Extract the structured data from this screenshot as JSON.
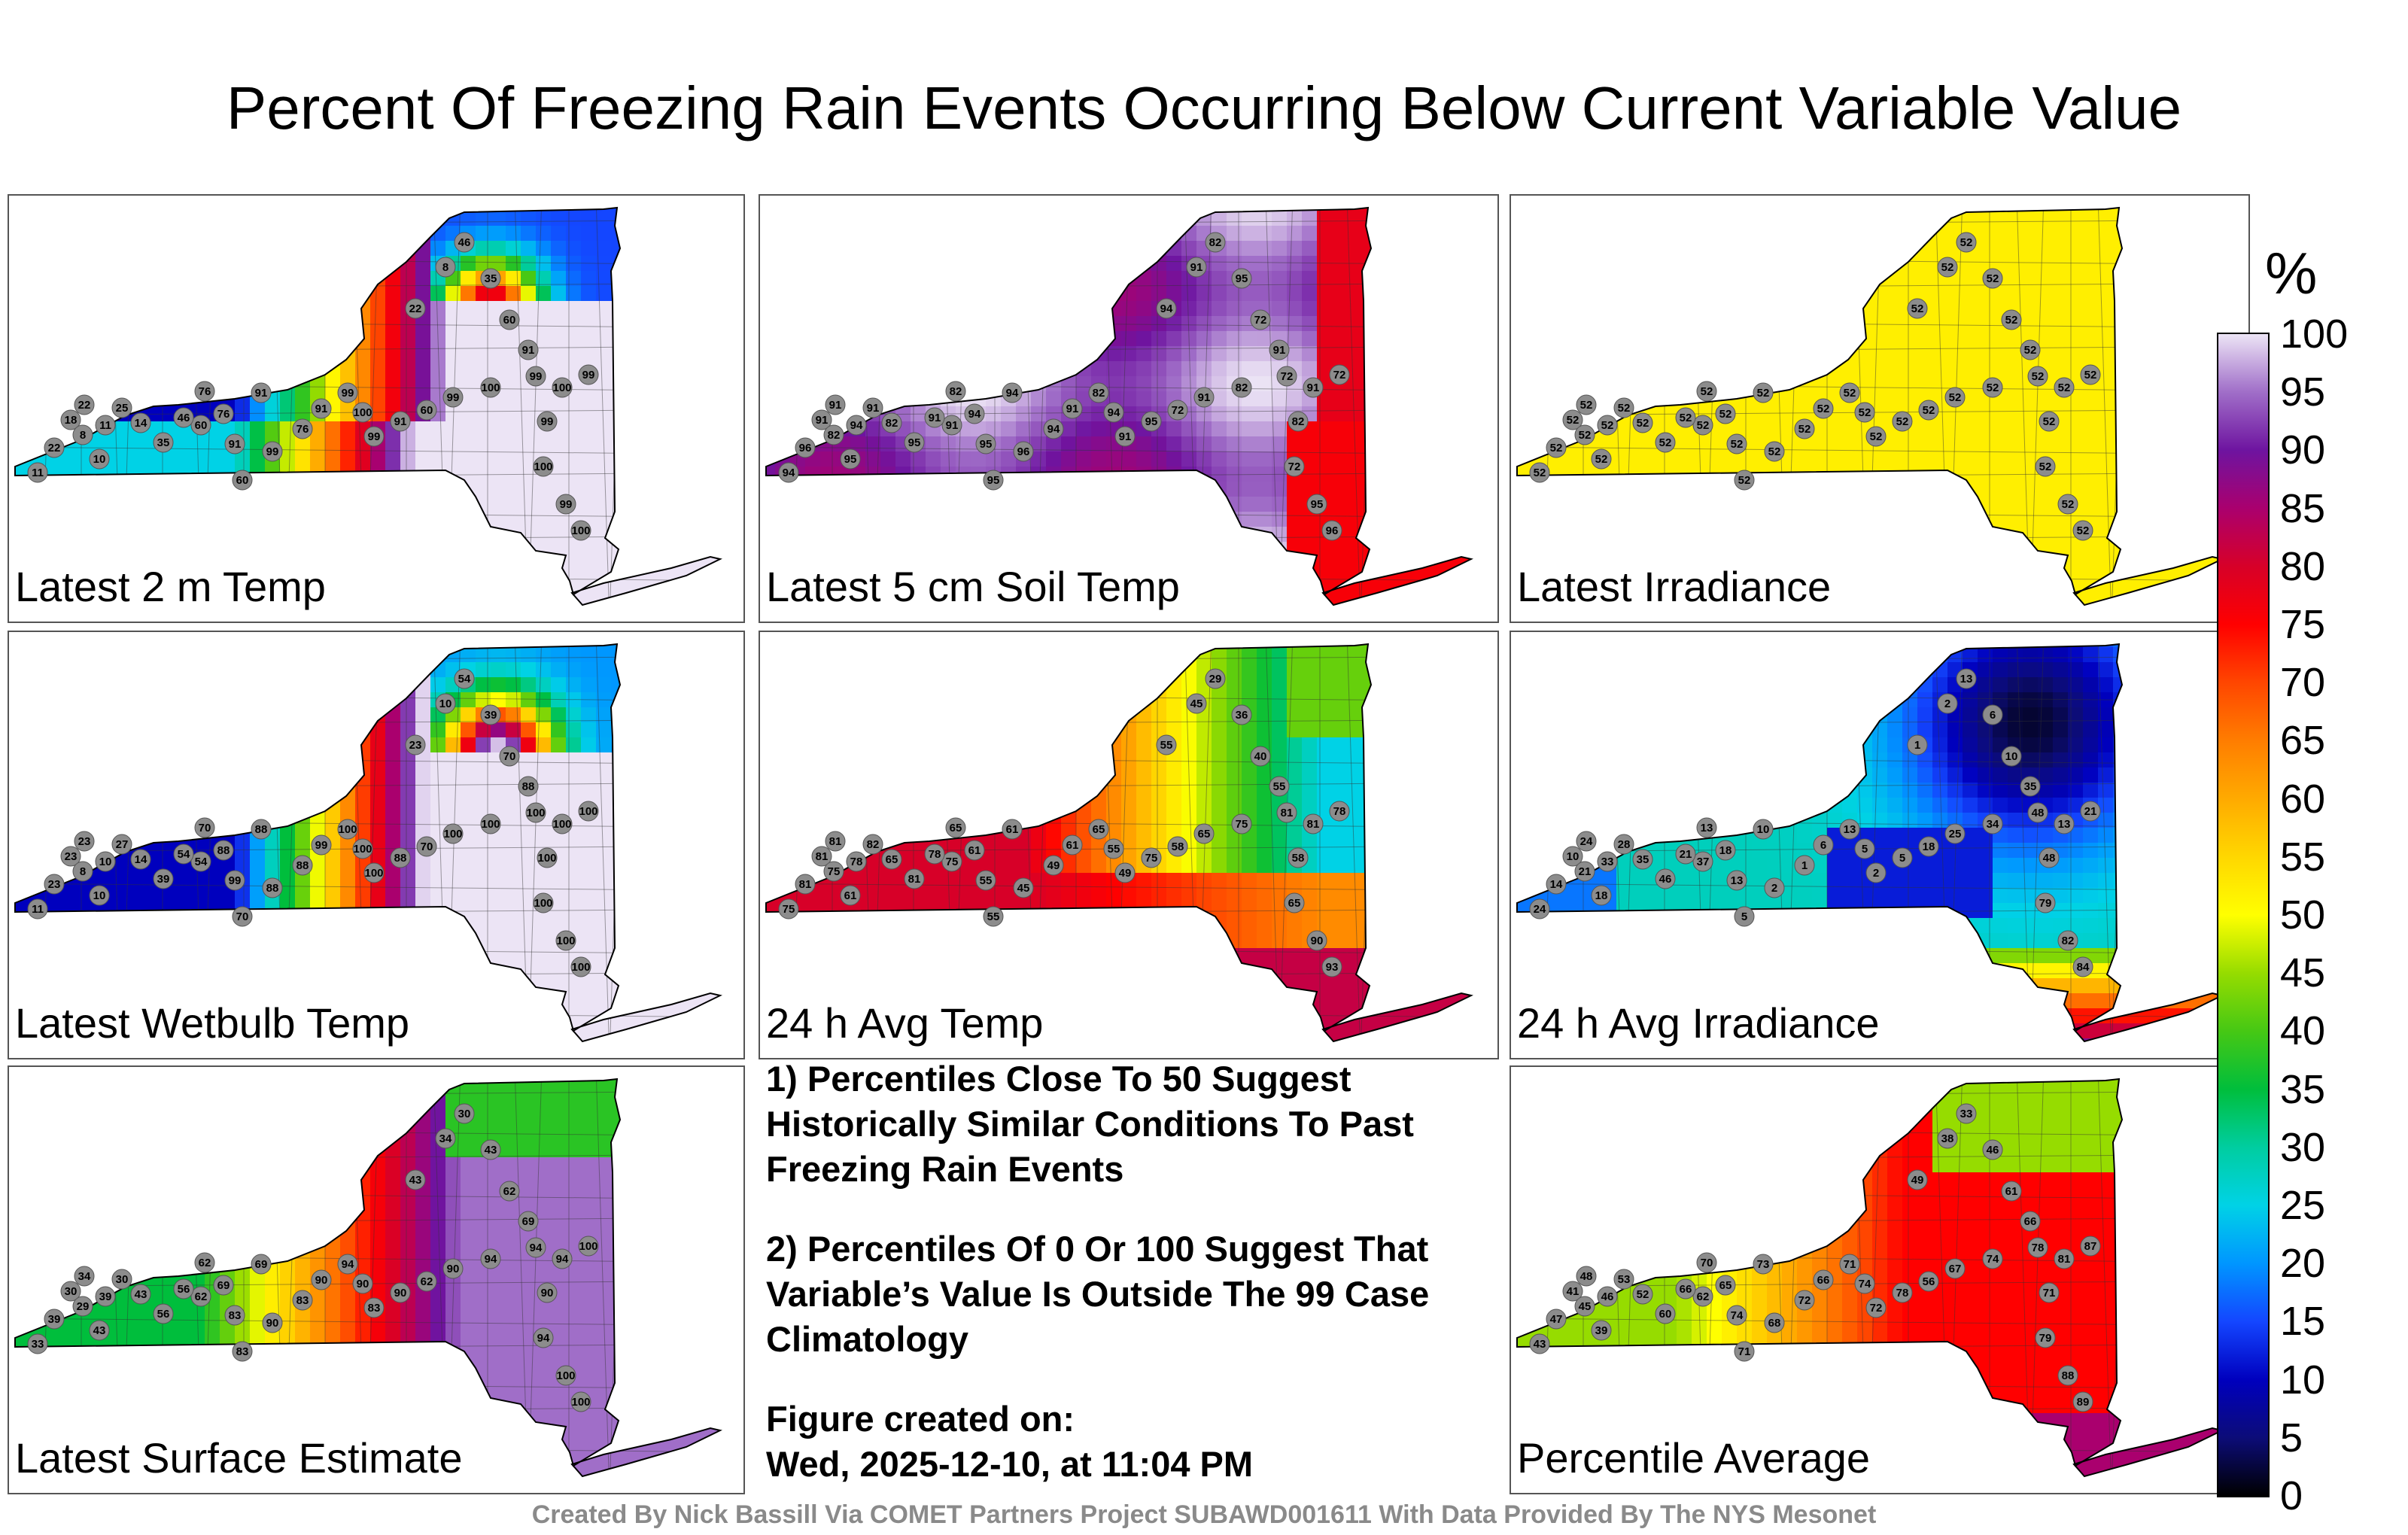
{
  "title": "Percent Of Freezing Rain Events Occurring Below Current Variable Value",
  "panels": [
    {
      "label": "Latest 2 m Temp",
      "mode": "temp2m",
      "values": [
        11,
        22,
        18,
        8,
        10,
        22,
        11,
        25,
        14,
        35,
        60,
        76,
        91,
        46,
        76,
        91,
        60,
        99,
        76,
        91,
        99,
        100,
        99,
        91,
        60,
        99,
        100,
        99,
        100,
        99,
        22,
        8,
        46,
        35,
        60,
        91,
        99,
        100,
        99,
        100
      ]
    },
    {
      "label": "Latest 5 cm Soil Temp",
      "mode": "soil5",
      "values": [
        94,
        96,
        91,
        82,
        95,
        91,
        94,
        91,
        82,
        95,
        91,
        94,
        95,
        91,
        82,
        94,
        95,
        96,
        94,
        91,
        82,
        94,
        91,
        95,
        72,
        91,
        82,
        72,
        91,
        72,
        94,
        91,
        82,
        95,
        72,
        91,
        82,
        72,
        95,
        96
      ]
    },
    {
      "label": "Latest Irradiance",
      "mode": "irr",
      "values": [
        52,
        52,
        52,
        52,
        52,
        52,
        52,
        52,
        52,
        52,
        52,
        52,
        52,
        52,
        52,
        52,
        52,
        52,
        52,
        52,
        52,
        52,
        52,
        52,
        52,
        52,
        52,
        52,
        52,
        52,
        52,
        52,
        52,
        52,
        52,
        52,
        52,
        52,
        52,
        52
      ]
    },
    {
      "label": "Latest Wetbulb Temp",
      "mode": "wetbulb",
      "values": [
        11,
        23,
        23,
        8,
        10,
        23,
        10,
        27,
        14,
        39,
        54,
        88,
        99,
        54,
        70,
        88,
        70,
        88,
        88,
        99,
        100,
        100,
        100,
        88,
        70,
        100,
        100,
        100,
        100,
        100,
        23,
        10,
        54,
        39,
        70,
        88,
        100,
        100,
        100,
        100
      ]
    },
    {
      "label": "24 h Avg Temp",
      "mode": "avgtemp",
      "values": [
        75,
        81,
        81,
        75,
        61,
        81,
        78,
        82,
        65,
        81,
        75,
        61,
        55,
        78,
        65,
        61,
        55,
        45,
        49,
        61,
        65,
        55,
        49,
        75,
        58,
        65,
        75,
        81,
        81,
        78,
        55,
        45,
        29,
        36,
        40,
        55,
        58,
        65,
        90,
        93
      ]
    },
    {
      "label": "24 h Avg Irradiance",
      "mode": "avgirr",
      "values": [
        24,
        14,
        10,
        21,
        18,
        24,
        33,
        28,
        35,
        46,
        37,
        18,
        13,
        21,
        13,
        10,
        5,
        2,
        1,
        6,
        13,
        5,
        2,
        5,
        18,
        25,
        34,
        48,
        13,
        21,
        1,
        2,
        13,
        6,
        10,
        35,
        48,
        79,
        82,
        84
      ]
    },
    {
      "label": "Latest Surface Estimate",
      "mode": "surface",
      "values": [
        33,
        39,
        30,
        29,
        43,
        34,
        39,
        30,
        43,
        56,
        62,
        69,
        83,
        56,
        62,
        69,
        83,
        90,
        83,
        90,
        94,
        90,
        83,
        90,
        62,
        90,
        94,
        94,
        94,
        100,
        43,
        34,
        30,
        43,
        62,
        69,
        90,
        94,
        100,
        100
      ]
    },
    {
      "label": "Percentile Average",
      "mode": "avg",
      "values": [
        43,
        47,
        41,
        45,
        39,
        48,
        46,
        53,
        52,
        60,
        62,
        65,
        74,
        66,
        70,
        73,
        71,
        68,
        72,
        66,
        71,
        74,
        72,
        78,
        56,
        67,
        74,
        78,
        81,
        87,
        49,
        38,
        33,
        46,
        61,
        66,
        71,
        79,
        88,
        89
      ]
    }
  ],
  "notes": [
    "1) Percentiles Close To 50 Suggest Historically Similar Conditions To Past Freezing Rain Events",
    "2) Percentiles Of 0 Or 100 Suggest That Variable’s Value Is Outside The 99 Case Climatology"
  ],
  "figure_created_label": "Figure created on:",
  "figure_created_date": "Wed, 2025-12-10, at 11:04 PM",
  "credit": "Created By Nick Bassill Via COMET Partners Project SUBAWD001611 With Data Provided By The NYS Mesonet",
  "colorbar": {
    "title": "%",
    "ticks": [
      "100",
      "95",
      "90",
      "85",
      "80",
      "75",
      "70",
      "65",
      "60",
      "55",
      "50",
      "45",
      "40",
      "35",
      "30",
      "25",
      "20",
      "15",
      "10",
      "5",
      "0"
    ]
  },
  "chart_data": {
    "type": "heatmap",
    "title": "Percent Of Freezing Rain Events Occurring Below Current Variable Value",
    "subplots": [
      "Latest 2 m Temp",
      "Latest 5 cm Soil Temp",
      "Latest Irradiance",
      "Latest Wetbulb Temp",
      "24 h Avg Temp",
      "24 h Avg Irradiance",
      "Latest Surface Estimate",
      "Percentile Average"
    ],
    "colorbar_label": "%",
    "range": [
      0,
      100
    ]
  }
}
